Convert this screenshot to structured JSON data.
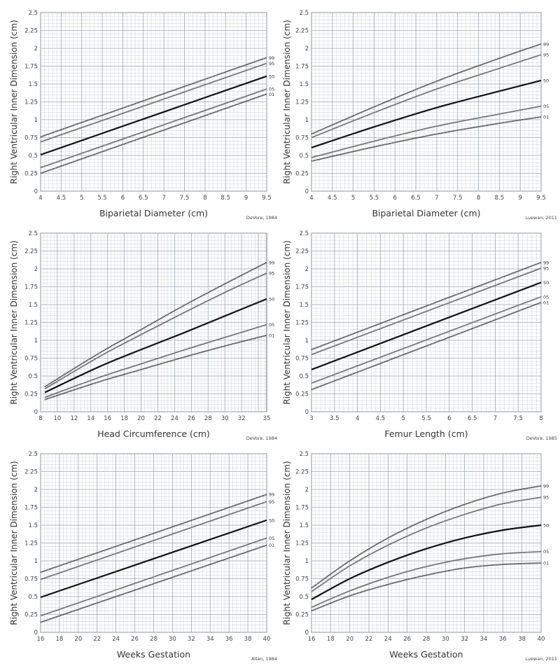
{
  "chart_data": [
    {
      "type": "line",
      "xlabel": "Biparietal Diameter (cm)",
      "ylabel": "Right Ventricular Inner  Dimension (cm)",
      "source": "DeVore, 1984",
      "xlim": [
        4,
        9.5
      ],
      "ylim": [
        0,
        2.5
      ],
      "xticks": [
        "4",
        "4.5",
        "5",
        "5.5",
        "6",
        "6.5",
        "7",
        "7.5",
        "8",
        "8.5",
        "9",
        "9.5"
      ],
      "yticks": [
        "0",
        "0.25",
        "0.5",
        "0.75",
        "1",
        "1.25",
        "1.5",
        "1.75",
        "2",
        "2.25",
        "2.5"
      ],
      "grid": true,
      "x": [
        4,
        9.5
      ],
      "series": [
        {
          "name": "99",
          "values": [
            0.76,
            1.87
          ]
        },
        {
          "name": "95",
          "values": [
            0.69,
            1.79
          ]
        },
        {
          "name": "50",
          "values": [
            0.51,
            1.61
          ]
        },
        {
          "name": "05",
          "values": [
            0.33,
            1.43
          ]
        },
        {
          "name": "01",
          "values": [
            0.25,
            1.36
          ]
        }
      ]
    },
    {
      "type": "line",
      "xlabel": "Biparietal Diameter (cm)",
      "ylabel": "Right Ventricular Inner Dimension (cm)",
      "source": "Luewan, 2011",
      "xlim": [
        4,
        9.5
      ],
      "ylim": [
        0,
        2.5
      ],
      "xticks": [
        "4",
        "4.5",
        "5",
        "5.5",
        "6",
        "6.5",
        "7",
        "7.5",
        "8",
        "8.5",
        "9",
        "9.5"
      ],
      "yticks": [
        "0",
        "0.25",
        "0.5",
        "0.75",
        "1",
        "1.25",
        "1.5",
        "1.75",
        "2",
        "2.25",
        "2.5"
      ],
      "grid": true,
      "x": [
        4,
        5.5,
        7,
        8.5,
        9.5
      ],
      "series": [
        {
          "name": "99",
          "values": [
            0.8,
            1.18,
            1.54,
            1.86,
            2.06
          ]
        },
        {
          "name": "95",
          "values": [
            0.75,
            1.1,
            1.43,
            1.72,
            1.91
          ]
        },
        {
          "name": "50",
          "values": [
            0.61,
            0.9,
            1.17,
            1.4,
            1.55
          ]
        },
        {
          "name": "05",
          "values": [
            0.47,
            0.7,
            0.91,
            1.08,
            1.19
          ]
        },
        {
          "name": "01",
          "values": [
            0.42,
            0.62,
            0.8,
            0.95,
            1.04
          ]
        }
      ]
    },
    {
      "type": "line",
      "xlabel": "Head Circumference (cm)",
      "ylabel": "Right Ventricular Inner Dimension (cm)",
      "source": "DeVore, 1984",
      "xlim": [
        8,
        35
      ],
      "ylim": [
        0,
        2.5
      ],
      "xticks": [
        "8",
        "10",
        "12",
        "14",
        "16",
        "18",
        "20",
        "22",
        "24",
        "26",
        "28",
        "30",
        "32",
        "35"
      ],
      "yticks": [
        "0",
        "0.25",
        "0.5",
        "0.75",
        "1",
        "1.25",
        "1.5",
        "1.75",
        "2",
        "2.25",
        "2.5"
      ],
      "grid": true,
      "x": [
        8.5,
        15,
        20,
        25,
        30,
        35
      ],
      "series": [
        {
          "name": "99",
          "values": [
            0.35,
            0.82,
            1.15,
            1.48,
            1.79,
            2.09
          ]
        },
        {
          "name": "95",
          "values": [
            0.32,
            0.77,
            1.08,
            1.38,
            1.67,
            1.94
          ]
        },
        {
          "name": "50",
          "values": [
            0.27,
            0.63,
            0.87,
            1.1,
            1.34,
            1.58
          ]
        },
        {
          "name": "05",
          "values": [
            0.2,
            0.48,
            0.67,
            0.86,
            1.04,
            1.22
          ]
        },
        {
          "name": "01",
          "values": [
            0.17,
            0.42,
            0.59,
            0.76,
            0.92,
            1.07
          ]
        }
      ]
    },
    {
      "type": "line",
      "xlabel": "Femur Length (cm)",
      "ylabel": "Right Ventricular Inner Dimension (cm)",
      "source": "DeVore, 1985",
      "xlim": [
        3,
        8
      ],
      "ylim": [
        0,
        2.5
      ],
      "xticks": [
        "3",
        "3.5",
        "4",
        "4.5",
        "5",
        "5.5",
        "6",
        "6.5",
        "7",
        "7.5",
        "8"
      ],
      "yticks": [
        "0",
        "0.25",
        "0.5",
        "0.75",
        "1",
        "1.25",
        "1.5",
        "1.75",
        "2",
        "2.25",
        "2.5"
      ],
      "grid": true,
      "x": [
        3,
        8
      ],
      "series": [
        {
          "name": "99",
          "values": [
            0.87,
            2.09
          ]
        },
        {
          "name": "95",
          "values": [
            0.8,
            2.01
          ]
        },
        {
          "name": "50",
          "values": [
            0.59,
            1.81
          ]
        },
        {
          "name": "05",
          "values": [
            0.4,
            1.61
          ]
        },
        {
          "name": "01",
          "values": [
            0.31,
            1.53
          ]
        }
      ]
    },
    {
      "type": "line",
      "xlabel": "Weeks Gestation",
      "ylabel": "Right Ventricular Inner Dimension (cm)",
      "source": "Allan, 1984",
      "xlim": [
        16,
        40
      ],
      "ylim": [
        0,
        2.5
      ],
      "xticks": [
        "16",
        "18",
        "20",
        "22",
        "24",
        "26",
        "28",
        "30",
        "32",
        "34",
        "36",
        "38",
        "40"
      ],
      "yticks": [
        "0",
        "0.25",
        "0.5",
        "0.75",
        "1",
        "1.25",
        "1.5",
        "1.75",
        "2",
        "2.25",
        "2.5"
      ],
      "grid": true,
      "x": [
        16,
        40
      ],
      "series": [
        {
          "name": "99",
          "values": [
            0.84,
            1.93
          ]
        },
        {
          "name": "95",
          "values": [
            0.74,
            1.83
          ]
        },
        {
          "name": "50",
          "values": [
            0.49,
            1.57
          ]
        },
        {
          "name": "05",
          "values": [
            0.23,
            1.32
          ]
        },
        {
          "name": "01",
          "values": [
            0.14,
            1.22
          ]
        }
      ]
    },
    {
      "type": "line",
      "xlabel": "Weeks Gestation",
      "ylabel": "Right Ventricular Inner Dimension (cm)",
      "source": "Luewan, 2011",
      "xlim": [
        16,
        40
      ],
      "ylim": [
        0,
        2.5
      ],
      "xticks": [
        "16",
        "18",
        "20",
        "22",
        "24",
        "26",
        "28",
        "30",
        "32",
        "34",
        "36",
        "38",
        "40"
      ],
      "yticks": [
        "0",
        "0.25",
        "0.5",
        "0.75",
        "1",
        "1.25",
        "1.5",
        "1.75",
        "2",
        "2.25",
        "2.5"
      ],
      "grid": true,
      "x": [
        16,
        20,
        24,
        28,
        32,
        36,
        40
      ],
      "series": [
        {
          "name": "99",
          "values": [
            0.62,
            1.0,
            1.32,
            1.58,
            1.79,
            1.95,
            2.05
          ]
        },
        {
          "name": "95",
          "values": [
            0.57,
            0.93,
            1.22,
            1.46,
            1.65,
            1.8,
            1.89
          ]
        },
        {
          "name": "50",
          "values": [
            0.46,
            0.75,
            0.98,
            1.17,
            1.32,
            1.43,
            1.5
          ]
        },
        {
          "name": "05",
          "values": [
            0.35,
            0.58,
            0.77,
            0.92,
            1.03,
            1.1,
            1.13
          ]
        },
        {
          "name": "01",
          "values": [
            0.3,
            0.51,
            0.67,
            0.8,
            0.9,
            0.95,
            0.97
          ]
        }
      ]
    }
  ],
  "style": {
    "grid_major": "#9aa5ad",
    "grid_minor": "#c9d0d5",
    "series_colors": {
      "99": "#333333",
      "95": "#777777",
      "50": "#111111",
      "05": "#777777",
      "01": "#333333"
    }
  }
}
